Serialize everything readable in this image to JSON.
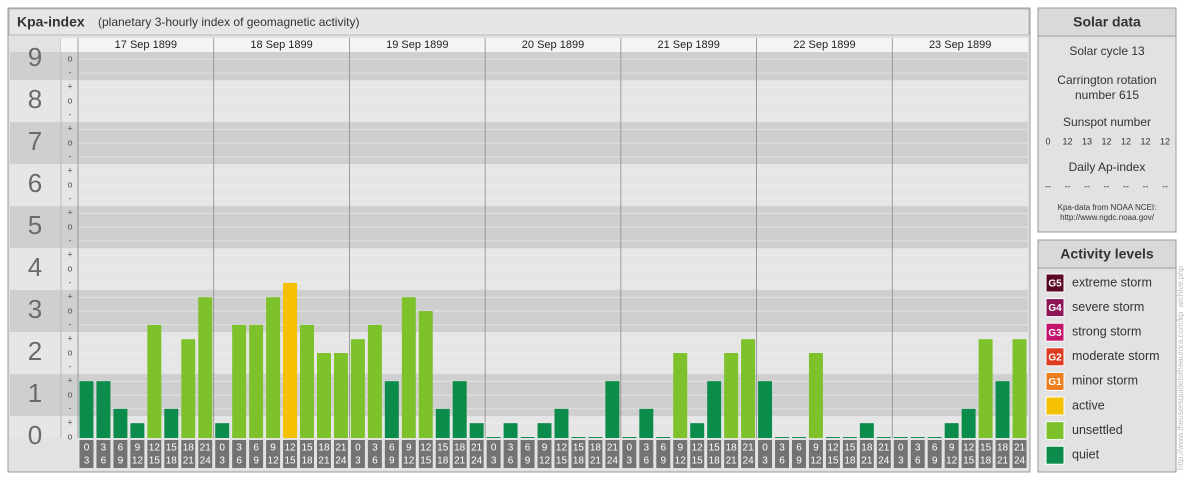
{
  "title": "Kpa-index",
  "subtitle": "(planetary 3-hourly index of geomagnetic activity)",
  "chart_data": {
    "type": "bar",
    "days": [
      "17 Sep 1899",
      "18 Sep 1899",
      "19 Sep 1899",
      "20 Sep 1899",
      "21 Sep 1899",
      "22 Sep 1899",
      "23 Sep 1899"
    ],
    "hours": [
      [
        "0",
        "3"
      ],
      [
        "3",
        "6"
      ],
      [
        "6",
        "9"
      ],
      [
        "9",
        "12"
      ],
      [
        "12",
        "15"
      ],
      [
        "15",
        "18"
      ],
      [
        "18",
        "21"
      ],
      [
        "21",
        "24"
      ]
    ],
    "values": [
      1.33,
      1.33,
      0.67,
      0.33,
      2.67,
      0.67,
      2.33,
      3.33,
      0.33,
      2.67,
      2.67,
      3.33,
      3.67,
      2.67,
      2,
      2,
      2.33,
      2.67,
      1.33,
      3.33,
      3,
      0.67,
      1.33,
      0.33,
      0,
      0.33,
      0,
      0.33,
      0.67,
      0,
      0,
      1.33,
      0,
      0.67,
      0,
      2,
      0.33,
      1.33,
      2,
      2.33,
      1.33,
      0,
      0,
      2,
      0,
      0,
      0.33,
      0,
      0,
      0,
      0,
      0.33,
      0.67,
      2.33,
      1.33,
      2.33
    ],
    "colors": [
      "#0b8c4b",
      "#0b8c4b",
      "#0b8c4b",
      "#0b8c4b",
      "#7dc12b",
      "#0b8c4b",
      "#7dc12b",
      "#7dc12b",
      "#0b8c4b",
      "#7dc12b",
      "#7dc12b",
      "#7dc12b",
      "#f5c000",
      "#7dc12b",
      "#7dc12b",
      "#7dc12b",
      "#7dc12b",
      "#7dc12b",
      "#0b8c4b",
      "#7dc12b",
      "#7dc12b",
      "#0b8c4b",
      "#0b8c4b",
      "#0b8c4b",
      "#0b8c4b",
      "#0b8c4b",
      "#0b8c4b",
      "#0b8c4b",
      "#0b8c4b",
      "#0b8c4b",
      "#0b8c4b",
      "#0b8c4b",
      "#0b8c4b",
      "#0b8c4b",
      "#0b8c4b",
      "#7dc12b",
      "#0b8c4b",
      "#0b8c4b",
      "#7dc12b",
      "#7dc12b",
      "#0b8c4b",
      "#0b8c4b",
      "#0b8c4b",
      "#7dc12b",
      "#0b8c4b",
      "#0b8c4b",
      "#0b8c4b",
      "#0b8c4b",
      "#0b8c4b",
      "#0b8c4b",
      "#0b8c4b",
      "#0b8c4b",
      "#0b8c4b",
      "#7dc12b",
      "#0b8c4b",
      "#7dc12b"
    ],
    "ylim": [
      0,
      9.17
    ],
    "yticks": [
      0,
      1,
      2,
      3,
      4,
      5,
      6,
      7,
      8,
      9
    ],
    "minor_ticks": [
      {
        "value": 0,
        "label": "o"
      },
      {
        "value": 0.33,
        "label": "+"
      },
      {
        "value": 0.67,
        "label": "-"
      },
      {
        "value": 1,
        "label": "o"
      },
      {
        "value": 1.33,
        "label": "+"
      },
      {
        "value": 1.67,
        "label": "-"
      },
      {
        "value": 2,
        "label": "o"
      },
      {
        "value": 2.33,
        "label": "+"
      },
      {
        "value": 2.67,
        "label": "-"
      },
      {
        "value": 3,
        "label": "o"
      },
      {
        "value": 3.33,
        "label": "+"
      },
      {
        "value": 3.67,
        "label": "-"
      },
      {
        "value": 4,
        "label": "o"
      },
      {
        "value": 4.33,
        "label": "+"
      },
      {
        "value": 4.67,
        "label": "-"
      },
      {
        "value": 5,
        "label": "o"
      },
      {
        "value": 5.33,
        "label": "+"
      },
      {
        "value": 5.67,
        "label": "-"
      },
      {
        "value": 6,
        "label": "o"
      },
      {
        "value": 6.33,
        "label": "+"
      },
      {
        "value": 6.67,
        "label": "-"
      },
      {
        "value": 7,
        "label": "o"
      },
      {
        "value": 7.33,
        "label": "+"
      },
      {
        "value": 7.67,
        "label": "-"
      },
      {
        "value": 8,
        "label": "o"
      },
      {
        "value": 8.33,
        "label": "+"
      },
      {
        "value": 8.67,
        "label": "-"
      },
      {
        "value": 9,
        "label": "o"
      }
    ]
  },
  "solar_data": {
    "title": "Solar data",
    "cycle": "Solar cycle 13",
    "carrington": [
      "Carrington rotation",
      "number 615"
    ],
    "sunspot_title": "Sunspot number",
    "sunspot_values": [
      0,
      12,
      13,
      12,
      12,
      12,
      12
    ],
    "ap_title": "Daily Ap-index",
    "ap_values": [
      "--",
      "--",
      "--",
      "--",
      "--",
      "--",
      "--"
    ],
    "source": [
      "Kpa-data from NOAA NCEI:",
      "http://www.ngdc.noaa.gov/"
    ]
  },
  "activity_levels": {
    "title": "Activity levels",
    "items": [
      {
        "code": "G5",
        "label": "extreme storm",
        "color": "#5b0a26"
      },
      {
        "code": "G4",
        "label": "severe storm",
        "color": "#8b1556"
      },
      {
        "code": "G3",
        "label": "strong storm",
        "color": "#c2136d"
      },
      {
        "code": "G2",
        "label": "moderate storm",
        "color": "#de3b22"
      },
      {
        "code": "G1",
        "label": "minor storm",
        "color": "#ee7d1c"
      },
      {
        "label": "active",
        "color": "#f5c000"
      },
      {
        "label": "unsettled",
        "color": "#7dc12b"
      },
      {
        "label": "quiet",
        "color": "#0b8c4b"
      }
    ]
  },
  "side_link": "http://www.theusersguidetotheaurora.com/kp_archive.php"
}
